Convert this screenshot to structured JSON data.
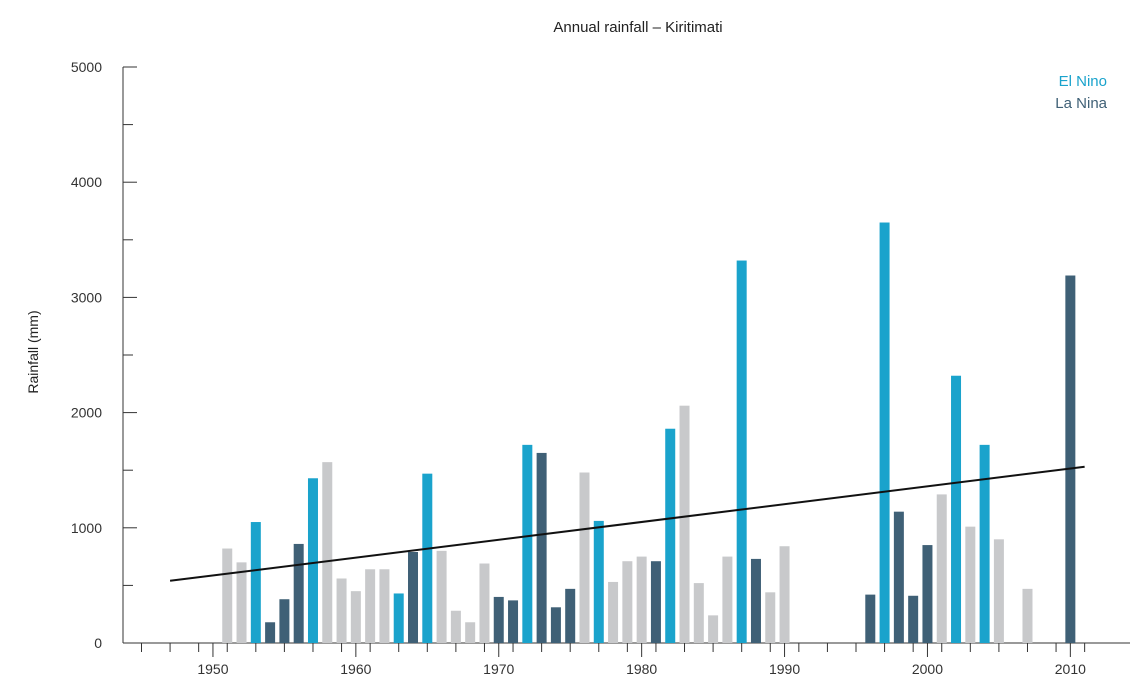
{
  "chart_data": {
    "type": "bar",
    "title": "Annual rainfall – Kiritimati",
    "xlabel": "",
    "ylabel": "Rainfall (mm)",
    "ylim": [
      0,
      5000
    ],
    "xlim": [
      1945,
      2012
    ],
    "x_ticks": [
      "1950",
      "1960",
      "1970",
      "1980",
      "1990",
      "2000",
      "2010"
    ],
    "y_ticks": [
      "0",
      "1000",
      "2000",
      "3000",
      "4000",
      "5000"
    ],
    "legend": {
      "position": "top-right",
      "entries": [
        {
          "label": "El Nino",
          "color": "#1aa3cc"
        },
        {
          "label": "La Nina",
          "color": "#3f6076"
        }
      ]
    },
    "neutral_color": "#c8c9cb",
    "trend_line": {
      "color": "#111111",
      "from": {
        "x": 1947,
        "y": 540
      },
      "to": {
        "x": 2011,
        "y": 1530
      }
    },
    "bars": [
      {
        "year": 1951,
        "value": 820,
        "phase": "neutral"
      },
      {
        "year": 1952,
        "value": 700,
        "phase": "neutral"
      },
      {
        "year": 1953,
        "value": 1050,
        "phase": "el_nino"
      },
      {
        "year": 1954,
        "value": 180,
        "phase": "la_nina"
      },
      {
        "year": 1955,
        "value": 380,
        "phase": "la_nina"
      },
      {
        "year": 1956,
        "value": 860,
        "phase": "la_nina"
      },
      {
        "year": 1957,
        "value": 1430,
        "phase": "el_nino"
      },
      {
        "year": 1958,
        "value": 1570,
        "phase": "neutral"
      },
      {
        "year": 1959,
        "value": 560,
        "phase": "neutral"
      },
      {
        "year": 1960,
        "value": 450,
        "phase": "neutral"
      },
      {
        "year": 1961,
        "value": 640,
        "phase": "neutral"
      },
      {
        "year": 1962,
        "value": 640,
        "phase": "neutral"
      },
      {
        "year": 1963,
        "value": 430,
        "phase": "el_nino"
      },
      {
        "year": 1964,
        "value": 790,
        "phase": "la_nina"
      },
      {
        "year": 1965,
        "value": 1470,
        "phase": "el_nino"
      },
      {
        "year": 1966,
        "value": 800,
        "phase": "neutral"
      },
      {
        "year": 1967,
        "value": 280,
        "phase": "neutral"
      },
      {
        "year": 1968,
        "value": 180,
        "phase": "neutral"
      },
      {
        "year": 1969,
        "value": 690,
        "phase": "neutral"
      },
      {
        "year": 1970,
        "value": 400,
        "phase": "la_nina"
      },
      {
        "year": 1971,
        "value": 370,
        "phase": "la_nina"
      },
      {
        "year": 1972,
        "value": 1720,
        "phase": "el_nino"
      },
      {
        "year": 1973,
        "value": 1650,
        "phase": "la_nina"
      },
      {
        "year": 1974,
        "value": 310,
        "phase": "la_nina"
      },
      {
        "year": 1975,
        "value": 470,
        "phase": "la_nina"
      },
      {
        "year": 1976,
        "value": 1480,
        "phase": "neutral"
      },
      {
        "year": 1977,
        "value": 1060,
        "phase": "el_nino"
      },
      {
        "year": 1978,
        "value": 530,
        "phase": "neutral"
      },
      {
        "year": 1979,
        "value": 710,
        "phase": "neutral"
      },
      {
        "year": 1980,
        "value": 750,
        "phase": "neutral"
      },
      {
        "year": 1981,
        "value": 710,
        "phase": "la_nina"
      },
      {
        "year": 1982,
        "value": 1860,
        "phase": "el_nino"
      },
      {
        "year": 1983,
        "value": 2060,
        "phase": "neutral"
      },
      {
        "year": 1984,
        "value": 520,
        "phase": "neutral"
      },
      {
        "year": 1985,
        "value": 240,
        "phase": "neutral"
      },
      {
        "year": 1986,
        "value": 750,
        "phase": "neutral"
      },
      {
        "year": 1987,
        "value": 3320,
        "phase": "el_nino"
      },
      {
        "year": 1988,
        "value": 730,
        "phase": "la_nina"
      },
      {
        "year": 1989,
        "value": 440,
        "phase": "neutral"
      },
      {
        "year": 1990,
        "value": 840,
        "phase": "neutral"
      },
      {
        "year": 1996,
        "value": 420,
        "phase": "la_nina"
      },
      {
        "year": 1997,
        "value": 3650,
        "phase": "el_nino"
      },
      {
        "year": 1998,
        "value": 1140,
        "phase": "la_nina"
      },
      {
        "year": 1999,
        "value": 410,
        "phase": "la_nina"
      },
      {
        "year": 2000,
        "value": 850,
        "phase": "la_nina"
      },
      {
        "year": 2001,
        "value": 1290,
        "phase": "neutral"
      },
      {
        "year": 2002,
        "value": 2320,
        "phase": "el_nino"
      },
      {
        "year": 2003,
        "value": 1010,
        "phase": "neutral"
      },
      {
        "year": 2004,
        "value": 1720,
        "phase": "el_nino"
      },
      {
        "year": 2005,
        "value": 900,
        "phase": "neutral"
      },
      {
        "year": 2007,
        "value": 470,
        "phase": "neutral"
      },
      {
        "year": 2010,
        "value": 3190,
        "phase": "la_nina"
      }
    ]
  }
}
